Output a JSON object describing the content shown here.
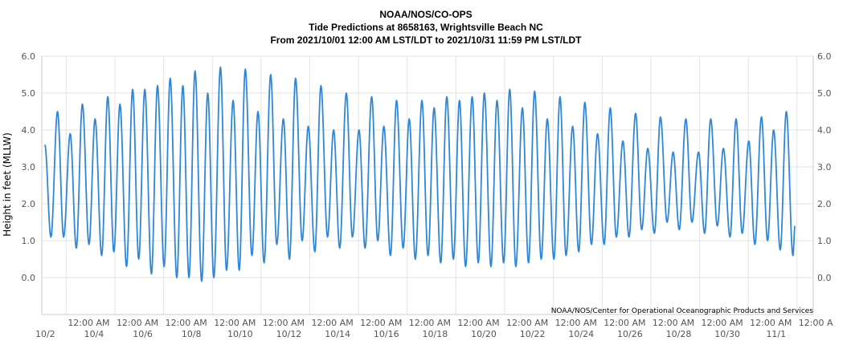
{
  "chart_data": {
    "type": "line",
    "title": "NOAA/NOS/CO-OPS",
    "subtitle": "Tide Predictions at 8658163, Wrightsville Beach NC",
    "subtitle2": "From 2021/10/01 12:00 AM LST/LDT to 2021/10/31 11:59 PM LST/LDT",
    "ylabel": "Height in feet (MLLW)",
    "xlabel": "",
    "credit": "NOAA/NOS/Center for Operational Oceanographic Products and Services",
    "ylim": [
      -1.0,
      6.0
    ],
    "xlim": [
      "2021-10-01 00:00",
      "2021-11-01 16:00"
    ],
    "yticks": [
      "6.0",
      "5.0",
      "4.0",
      "3.0",
      "2.0",
      "1.0",
      "0.0"
    ],
    "ytick_values": [
      6,
      5,
      4,
      3,
      2,
      1,
      0
    ],
    "xticks": [
      {
        "time": "12:00 AM",
        "date": "10/2"
      },
      {
        "time": "12:00 AM",
        "date": "10/4"
      },
      {
        "time": "12:00 AM",
        "date": "10/6"
      },
      {
        "time": "12:00 AM",
        "date": "10/8"
      },
      {
        "time": "12:00 AM",
        "date": "10/10"
      },
      {
        "time": "12:00 AM",
        "date": "10/12"
      },
      {
        "time": "12:00 AM",
        "date": "10/14"
      },
      {
        "time": "12:00 AM",
        "date": "10/16"
      },
      {
        "time": "12:00 AM",
        "date": "10/18"
      },
      {
        "time": "12:00 AM",
        "date": "10/20"
      },
      {
        "time": "12:00 AM",
        "date": "10/22"
      },
      {
        "time": "12:00 AM",
        "date": "10/24"
      },
      {
        "time": "12:00 AM",
        "date": "10/26"
      },
      {
        "time": "12:00 AM",
        "date": "10/28"
      },
      {
        "time": "12:00 AM",
        "date": "10/30"
      },
      {
        "time": "12:00 A",
        "date": "11/1"
      }
    ],
    "xtick_dates": [
      "2021-10-02",
      "2021-10-04",
      "2021-10-06",
      "2021-10-08",
      "2021-10-10",
      "2021-10-12",
      "2021-10-14",
      "2021-10-16",
      "2021-10-18",
      "2021-10-20",
      "2021-10-22",
      "2021-10-24",
      "2021-10-26",
      "2021-10-28",
      "2021-10-30",
      "2021-11-01"
    ],
    "grid": true,
    "series_color": "#2f87d8",
    "series": [
      {
        "name": "",
        "points": [
          [
            "2021-10-01 03:00",
            3.6
          ],
          [
            "2021-10-01 09:00",
            1.1
          ],
          [
            "2021-10-01 15:30",
            4.5
          ],
          [
            "2021-10-01 21:30",
            1.1
          ],
          [
            "2021-10-02 04:00",
            3.9
          ],
          [
            "2021-10-02 10:00",
            0.8
          ],
          [
            "2021-10-02 16:00",
            4.7
          ],
          [
            "2021-10-02 22:30",
            0.9
          ],
          [
            "2021-10-03 04:30",
            4.3
          ],
          [
            "2021-10-03 11:00",
            0.6
          ],
          [
            "2021-10-03 17:00",
            4.9
          ],
          [
            "2021-10-03 23:00",
            0.7
          ],
          [
            "2021-10-04 05:00",
            4.7
          ],
          [
            "2021-10-04 11:30",
            0.3
          ],
          [
            "2021-10-04 17:30",
            5.1
          ],
          [
            "2021-10-04 23:30",
            0.5
          ],
          [
            "2021-10-05 05:30",
            5.1
          ],
          [
            "2021-10-05 12:00",
            0.1
          ],
          [
            "2021-10-05 18:00",
            5.2
          ],
          [
            "2021-10-06 00:30",
            0.3
          ],
          [
            "2021-10-06 06:30",
            5.4
          ],
          [
            "2021-10-06 13:00",
            0.0
          ],
          [
            "2021-10-06 19:00",
            5.2
          ],
          [
            "2021-10-07 01:00",
            0.0
          ],
          [
            "2021-10-07 07:00",
            5.6
          ],
          [
            "2021-10-07 13:30",
            -0.1
          ],
          [
            "2021-10-07 19:30",
            5.0
          ],
          [
            "2021-10-08 01:30",
            0.0
          ],
          [
            "2021-10-08 08:00",
            5.7
          ],
          [
            "2021-10-08 14:00",
            0.2
          ],
          [
            "2021-10-08 20:30",
            4.8
          ],
          [
            "2021-10-09 02:30",
            0.2
          ],
          [
            "2021-10-09 08:30",
            5.65
          ],
          [
            "2021-10-09 15:00",
            0.6
          ],
          [
            "2021-10-09 21:00",
            4.5
          ],
          [
            "2021-10-10 03:00",
            0.4
          ],
          [
            "2021-10-10 09:30",
            5.5
          ],
          [
            "2021-10-10 15:30",
            0.9
          ],
          [
            "2021-10-10 22:00",
            4.3
          ],
          [
            "2021-10-11 04:00",
            0.5
          ],
          [
            "2021-10-11 10:00",
            5.4
          ],
          [
            "2021-10-11 16:30",
            1.0
          ],
          [
            "2021-10-11 22:30",
            4.1
          ],
          [
            "2021-10-12 05:00",
            0.7
          ],
          [
            "2021-10-12 11:00",
            5.2
          ],
          [
            "2021-10-12 17:30",
            1.1
          ],
          [
            "2021-10-12 23:30",
            4.0
          ],
          [
            "2021-10-13 05:30",
            0.8
          ],
          [
            "2021-10-13 12:00",
            5.0
          ],
          [
            "2021-10-13 18:00",
            1.1
          ],
          [
            "2021-10-14 00:30",
            4.0
          ],
          [
            "2021-10-14 06:30",
            0.8
          ],
          [
            "2021-10-14 13:00",
            4.9
          ],
          [
            "2021-10-14 19:00",
            1.0
          ],
          [
            "2021-10-15 01:00",
            4.1
          ],
          [
            "2021-10-15 07:30",
            0.6
          ],
          [
            "2021-10-15 13:30",
            4.8
          ],
          [
            "2021-10-15 20:00",
            0.8
          ],
          [
            "2021-10-16 02:00",
            4.3
          ],
          [
            "2021-10-16 08:00",
            0.5
          ],
          [
            "2021-10-16 14:30",
            4.8
          ],
          [
            "2021-10-16 20:30",
            0.6
          ],
          [
            "2021-10-17 02:30",
            4.6
          ],
          [
            "2021-10-17 09:00",
            0.4
          ],
          [
            "2021-10-17 15:00",
            4.9
          ],
          [
            "2021-10-17 21:30",
            0.5
          ],
          [
            "2021-10-18 03:30",
            4.8
          ],
          [
            "2021-10-18 09:30",
            0.3
          ],
          [
            "2021-10-18 16:00",
            4.9
          ],
          [
            "2021-10-18 22:00",
            0.4
          ],
          [
            "2021-10-19 04:00",
            5.0
          ],
          [
            "2021-10-19 10:30",
            0.3
          ],
          [
            "2021-10-19 16:30",
            4.8
          ],
          [
            "2021-10-19 23:00",
            0.4
          ],
          [
            "2021-10-20 05:00",
            5.1
          ],
          [
            "2021-10-20 11:00",
            0.3
          ],
          [
            "2021-10-20 17:30",
            4.6
          ],
          [
            "2021-10-20 23:30",
            0.4
          ],
          [
            "2021-10-21 05:30",
            5.05
          ],
          [
            "2021-10-21 12:00",
            0.5
          ],
          [
            "2021-10-21 18:00",
            4.3
          ],
          [
            "2021-10-22 00:30",
            0.5
          ],
          [
            "2021-10-22 06:30",
            4.9
          ],
          [
            "2021-10-22 12:30",
            0.6
          ],
          [
            "2021-10-22 19:00",
            4.1
          ],
          [
            "2021-10-23 01:00",
            0.7
          ],
          [
            "2021-10-23 07:00",
            4.75
          ],
          [
            "2021-10-23 13:30",
            0.9
          ],
          [
            "2021-10-23 19:30",
            3.9
          ],
          [
            "2021-10-24 02:00",
            0.9
          ],
          [
            "2021-10-24 08:00",
            4.6
          ],
          [
            "2021-10-24 14:00",
            1.1
          ],
          [
            "2021-10-24 20:30",
            3.7
          ],
          [
            "2021-10-25 02:30",
            1.1
          ],
          [
            "2021-10-25 09:00",
            4.45
          ],
          [
            "2021-10-25 15:00",
            1.3
          ],
          [
            "2021-10-25 21:00",
            3.5
          ],
          [
            "2021-10-26 03:30",
            1.2
          ],
          [
            "2021-10-26 09:30",
            4.35
          ],
          [
            "2021-10-26 16:00",
            1.5
          ],
          [
            "2021-10-26 22:00",
            3.4
          ],
          [
            "2021-10-27 04:00",
            1.3
          ],
          [
            "2021-10-27 10:30",
            4.3
          ],
          [
            "2021-10-27 16:30",
            1.5
          ],
          [
            "2021-10-27 23:00",
            3.4
          ],
          [
            "2021-10-28 05:00",
            1.2
          ],
          [
            "2021-10-28 11:00",
            4.3
          ],
          [
            "2021-10-28 17:30",
            1.4
          ],
          [
            "2021-10-28 23:30",
            3.5
          ],
          [
            "2021-10-29 06:00",
            1.1
          ],
          [
            "2021-10-29 12:00",
            4.3
          ],
          [
            "2021-10-29 18:00",
            1.2
          ],
          [
            "2021-10-30 00:30",
            3.7
          ],
          [
            "2021-10-30 06:30",
            0.9
          ],
          [
            "2021-10-30 13:00",
            4.35
          ],
          [
            "2021-10-30 19:00",
            1.0
          ],
          [
            "2021-10-31 01:00",
            4.0
          ],
          [
            "2021-10-31 07:30",
            0.75
          ],
          [
            "2021-10-31 13:30",
            4.5
          ],
          [
            "2021-10-31 20:00",
            0.6
          ],
          [
            "2021-10-31 22:00",
            1.4
          ]
        ]
      }
    ]
  }
}
